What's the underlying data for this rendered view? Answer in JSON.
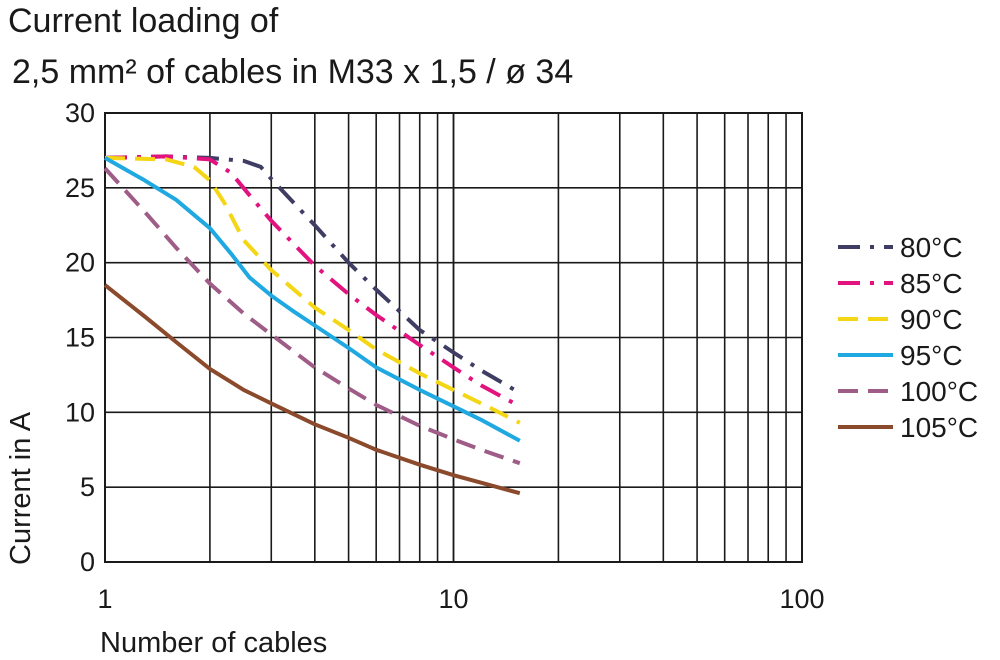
{
  "chart_data": {
    "type": "line",
    "title": "Current loading of",
    "subtitle": "2,5 mm² of cables in M33 x 1,5 / ø 34",
    "xlabel": "Number of cables",
    "ylabel": "Current in A",
    "x_scale": "log",
    "xlim": [
      1,
      100
    ],
    "ylim": [
      0,
      30
    ],
    "x_ticks": [
      {
        "value": 1,
        "label": "1"
      },
      {
        "value": 10,
        "label": "10"
      },
      {
        "value": 100,
        "label": "100"
      }
    ],
    "y_ticks": [
      {
        "value": 0,
        "label": "0"
      },
      {
        "value": 5,
        "label": "5"
      },
      {
        "value": 10,
        "label": "10"
      },
      {
        "value": 15,
        "label": "15"
      },
      {
        "value": 20,
        "label": "20"
      },
      {
        "value": 25,
        "label": "25"
      },
      {
        "value": 30,
        "label": "30"
      }
    ],
    "grid": true,
    "legend_position": "right",
    "series": [
      {
        "name": "80°C",
        "color": "#3f3d63",
        "dash": "dash-dot",
        "x": [
          1,
          1.5,
          2,
          2.5,
          2.8,
          3,
          4,
          5,
          6,
          8,
          10,
          12,
          15.5
        ],
        "y": [
          27,
          27.1,
          27,
          26.8,
          26.4,
          25.6,
          22.5,
          20,
          18.2,
          15.5,
          14,
          12.8,
          11.3
        ]
      },
      {
        "name": "85°C",
        "color": "#e2127f",
        "dash": "dash-dot",
        "x": [
          1,
          1.5,
          2,
          2.3,
          2.6,
          3,
          4,
          5,
          6,
          8,
          10,
          12,
          15.5
        ],
        "y": [
          27,
          27.1,
          26.9,
          26,
          24.5,
          22.8,
          19.8,
          17.9,
          16.5,
          14.5,
          13,
          11.8,
          10.4
        ]
      },
      {
        "name": "90°C",
        "color": "#f4d614",
        "dash": "dash",
        "x": [
          1,
          1.5,
          1.8,
          2,
          2.2,
          2.5,
          3,
          4,
          5,
          6,
          8,
          10,
          12,
          15.5
        ],
        "y": [
          27,
          26.9,
          26.4,
          25.5,
          24,
          21.5,
          19.5,
          17,
          15.5,
          14.2,
          12.6,
          11.5,
          10.6,
          9.3
        ]
      },
      {
        "name": "95°C",
        "color": "#20a8e0",
        "dash": "solid",
        "x": [
          1,
          1.3,
          1.6,
          2,
          2.3,
          2.6,
          3,
          3.5,
          4,
          5,
          6,
          8,
          10,
          12,
          15.5
        ],
        "y": [
          27,
          25.5,
          24.2,
          22.3,
          20.6,
          19,
          17.8,
          16.7,
          15.8,
          14.3,
          13,
          11.5,
          10.4,
          9.5,
          8.1
        ]
      },
      {
        "name": "100°C",
        "color": "#9e5c86",
        "dash": "dash",
        "x": [
          1,
          1.3,
          1.6,
          2,
          2.5,
          3,
          4,
          5,
          6,
          8,
          10,
          12,
          15.5
        ],
        "y": [
          26.3,
          23.4,
          21,
          18.6,
          16.6,
          15.2,
          13,
          11.6,
          10.5,
          9.1,
          8.2,
          7.5,
          6.6
        ]
      },
      {
        "name": "105°C",
        "color": "#8b4a2b",
        "dash": "solid",
        "x": [
          1,
          1.3,
          1.6,
          2,
          2.5,
          3,
          4,
          5,
          6,
          8,
          10,
          12,
          15.5
        ],
        "y": [
          18.5,
          16.4,
          14.7,
          12.9,
          11.5,
          10.6,
          9.2,
          8.3,
          7.5,
          6.5,
          5.8,
          5.3,
          4.6
        ]
      }
    ]
  }
}
